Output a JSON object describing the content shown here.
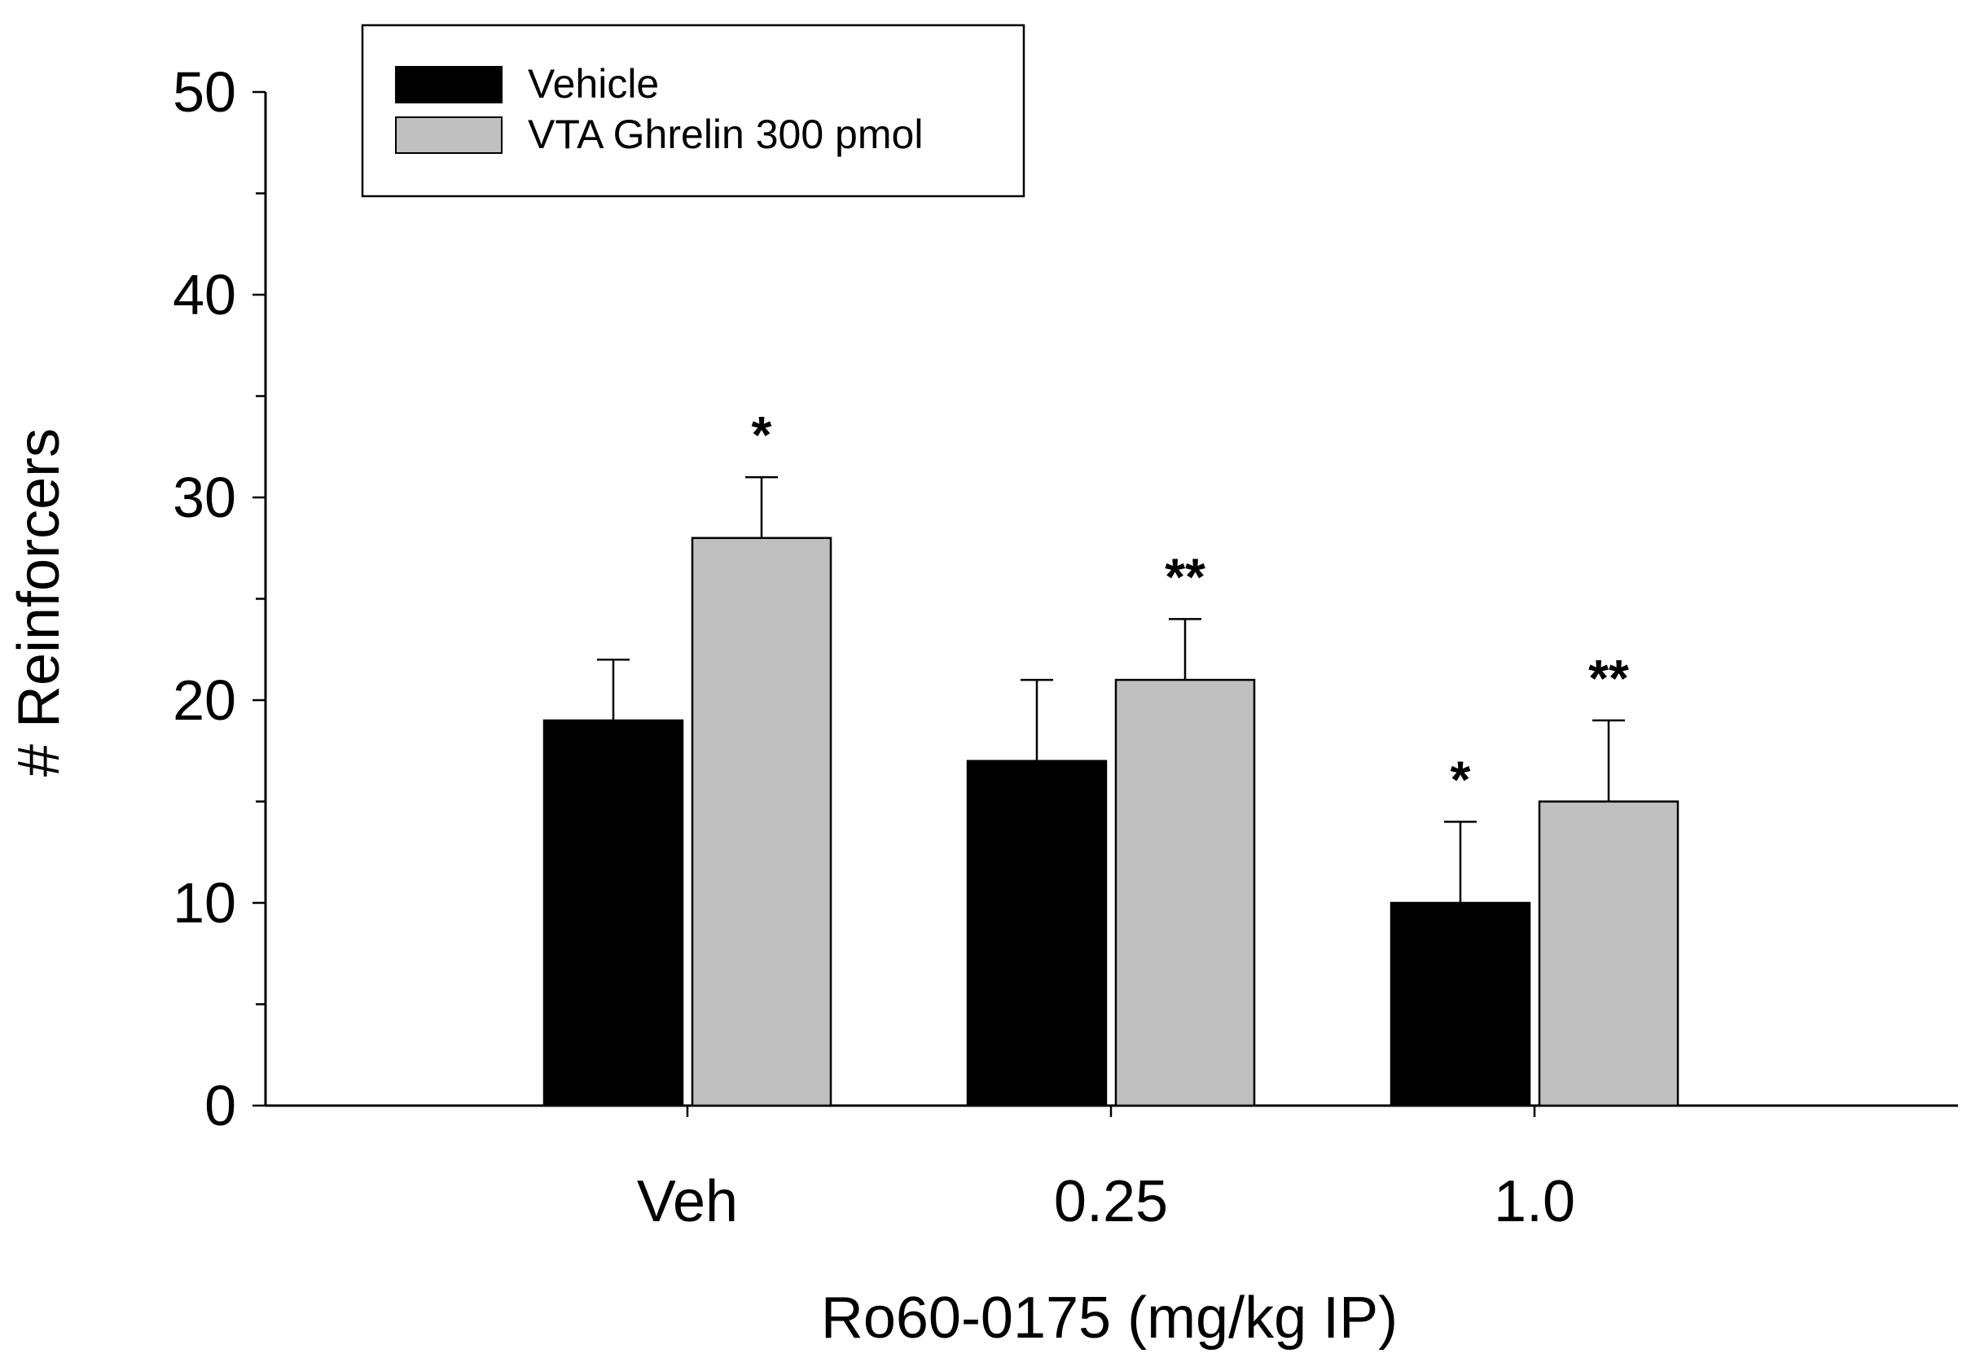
{
  "chart_data": {
    "type": "bar",
    "categories": [
      "Veh",
      "0.25",
      "1.0"
    ],
    "series": [
      {
        "name": "Vehicle",
        "color": "#000000",
        "values": [
          19,
          17,
          10
        ],
        "errors": [
          3,
          4,
          4
        ],
        "annotations": [
          "",
          "",
          "*"
        ]
      },
      {
        "name": "VTA Ghrelin 300 pmol",
        "color": "#c0c0c0",
        "values": [
          28,
          21,
          15
        ],
        "errors": [
          3,
          3,
          4
        ],
        "annotations": [
          "*",
          "**",
          "**"
        ]
      }
    ],
    "title": "",
    "xlabel": "Ro60-0175 (mg/kg IP)",
    "ylabel": "# Reinforcers",
    "ylim": [
      0,
      50
    ],
    "yticks": [
      "0",
      "10",
      "20",
      "30",
      "40",
      "50"
    ],
    "grid": false,
    "legend_position": "top-left"
  }
}
